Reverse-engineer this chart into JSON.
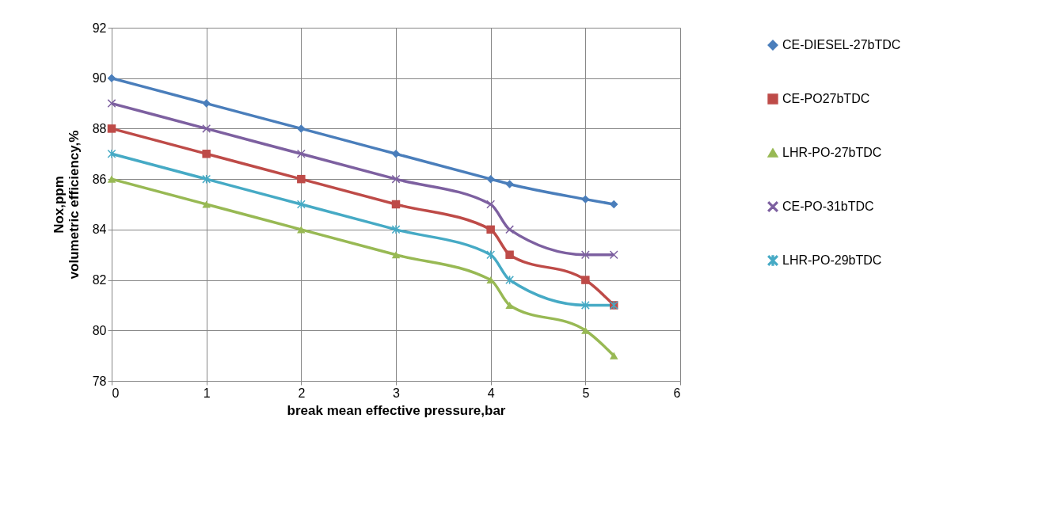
{
  "chart_data": {
    "type": "line",
    "xlabel": "break mean effective pressure,bar",
    "ylabel": "volumetric efficiency,%",
    "annotations": [
      "Nox,ppm"
    ],
    "x": [
      0,
      1,
      2,
      3,
      4,
      4.2,
      5,
      5.3
    ],
    "series": [
      {
        "name": "CE-DIESEL-27bTDC",
        "color": "#4a7ebb",
        "marker": "diamond",
        "values": [
          90,
          89,
          88,
          87,
          86,
          85.8,
          85.2,
          85
        ]
      },
      {
        "name": "CE-PO27bTDC",
        "color": "#be4b48",
        "marker": "square",
        "values": [
          88,
          87,
          86,
          85,
          84,
          83,
          82,
          81
        ]
      },
      {
        "name": "LHR-PO-27bTDC",
        "color": "#98b954",
        "marker": "triangle",
        "values": [
          86,
          85,
          84,
          83,
          82,
          81,
          80,
          79
        ]
      },
      {
        "name": "CE-PO-31bTDC",
        "color": "#7d60a0",
        "marker": "cross",
        "values": [
          89,
          88,
          87,
          86,
          85,
          84,
          83,
          83
        ]
      },
      {
        "name": "LHR-PO-29bTDC",
        "color": "#46aac5",
        "marker": "star",
        "values": [
          87,
          86,
          85,
          84,
          83,
          82,
          81,
          81
        ]
      }
    ],
    "xlim": [
      0,
      6
    ],
    "xticks": [
      0,
      1,
      2,
      3,
      4,
      5,
      6
    ],
    "ylim": [
      78,
      92
    ],
    "yticks": [
      78,
      80,
      82,
      84,
      86,
      88,
      90,
      92
    ],
    "grid": true,
    "legend": "right",
    "line_style": "solid"
  }
}
